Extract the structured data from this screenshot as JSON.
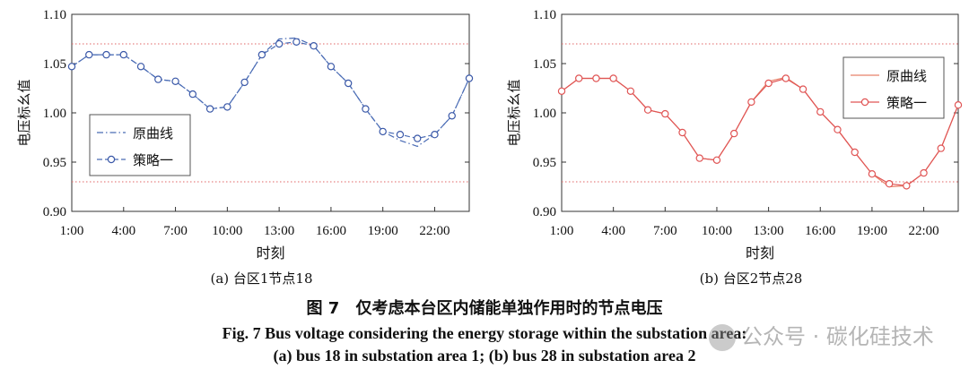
{
  "chart_data": [
    {
      "type": "line",
      "subtitle": "(a) 台区1节点18",
      "xlabel": "时刻",
      "ylabel": "电压标幺值",
      "ylim": [
        0.9,
        1.1
      ],
      "y_ticks": [
        "0.90",
        "0.95",
        "1.00",
        "1.05",
        "1.10"
      ],
      "x_ticks": [
        "1:00",
        "4:00",
        "7:00",
        "10:00",
        "13:00",
        "16:00",
        "19:00",
        "22:00"
      ],
      "x_tick_hours": [
        1,
        4,
        7,
        10,
        13,
        16,
        19,
        22
      ],
      "xlim": [
        1,
        24
      ],
      "reference_lines": [
        1.07,
        0.93
      ],
      "legend_position": "lower-left",
      "grid": false,
      "colors": {
        "line": "#4a6cb5",
        "marker": "#3a58a8",
        "reference": "#e06666"
      },
      "x": [
        1,
        2,
        3,
        4,
        5,
        6,
        7,
        8,
        9,
        10,
        11,
        12,
        13,
        14,
        15,
        16,
        17,
        18,
        19,
        20,
        21,
        22,
        23,
        24
      ],
      "series": [
        {
          "name": "原曲线",
          "style": "dash-dot",
          "values": [
            1.047,
            1.059,
            1.059,
            1.059,
            1.047,
            1.034,
            1.032,
            1.019,
            1.004,
            1.006,
            1.031,
            1.059,
            1.075,
            1.076,
            1.068,
            1.047,
            1.03,
            1.004,
            0.981,
            0.972,
            0.966,
            0.978,
            0.997,
            1.035
          ]
        },
        {
          "name": "策略一",
          "style": "dashed-marker",
          "values": [
            1.047,
            1.059,
            1.059,
            1.059,
            1.047,
            1.034,
            1.032,
            1.019,
            1.004,
            1.006,
            1.031,
            1.059,
            1.07,
            1.072,
            1.068,
            1.047,
            1.03,
            1.004,
            0.981,
            0.978,
            0.974,
            0.978,
            0.997,
            1.035
          ]
        }
      ]
    },
    {
      "type": "line",
      "subtitle": "(b) 台区2节点28",
      "xlabel": "时刻",
      "ylabel": "电压标幺值",
      "ylim": [
        0.9,
        1.1
      ],
      "y_ticks": [
        "0.90",
        "0.95",
        "1.00",
        "1.05",
        "1.10"
      ],
      "x_ticks": [
        "1:00",
        "4:00",
        "7:00",
        "10:00",
        "13:00",
        "16:00",
        "19:00",
        "22:00"
      ],
      "x_tick_hours": [
        1,
        4,
        7,
        10,
        13,
        16,
        19,
        22
      ],
      "xlim": [
        1,
        24
      ],
      "reference_lines": [
        1.07,
        0.93
      ],
      "legend_position": "upper-right",
      "grid": false,
      "colors": {
        "line": "#e8826a",
        "marker": "#e05555",
        "reference": "#e06666"
      },
      "x": [
        1,
        2,
        3,
        4,
        5,
        6,
        7,
        8,
        9,
        10,
        11,
        12,
        13,
        14,
        15,
        16,
        17,
        18,
        19,
        20,
        21,
        22,
        23,
        24
      ],
      "series": [
        {
          "name": "原曲线",
          "style": "solid",
          "values": [
            1.022,
            1.035,
            1.035,
            1.035,
            1.022,
            1.003,
            0.999,
            0.98,
            0.954,
            0.952,
            0.979,
            1.011,
            1.032,
            1.036,
            1.024,
            1.001,
            0.983,
            0.96,
            0.938,
            0.925,
            0.926,
            0.939,
            0.964,
            1.008
          ]
        },
        {
          "name": "策略一",
          "style": "solid-marker",
          "values": [
            1.022,
            1.035,
            1.035,
            1.035,
            1.022,
            1.003,
            0.999,
            0.98,
            0.954,
            0.952,
            0.979,
            1.011,
            1.03,
            1.035,
            1.024,
            1.001,
            0.983,
            0.96,
            0.938,
            0.928,
            0.926,
            0.939,
            0.964,
            1.008
          ]
        }
      ]
    }
  ],
  "caption": {
    "cn_label": "图 7",
    "cn_text": "仅考虑本台区内储能单独作用时的节点电压",
    "en_line1": "Fig. 7    Bus voltage considering the energy storage within the substation area:",
    "en_line2": "(a) bus 18 in substation area 1; (b) bus 28 in substation area 2"
  },
  "watermark": "公众号 · 碳化硅技术"
}
